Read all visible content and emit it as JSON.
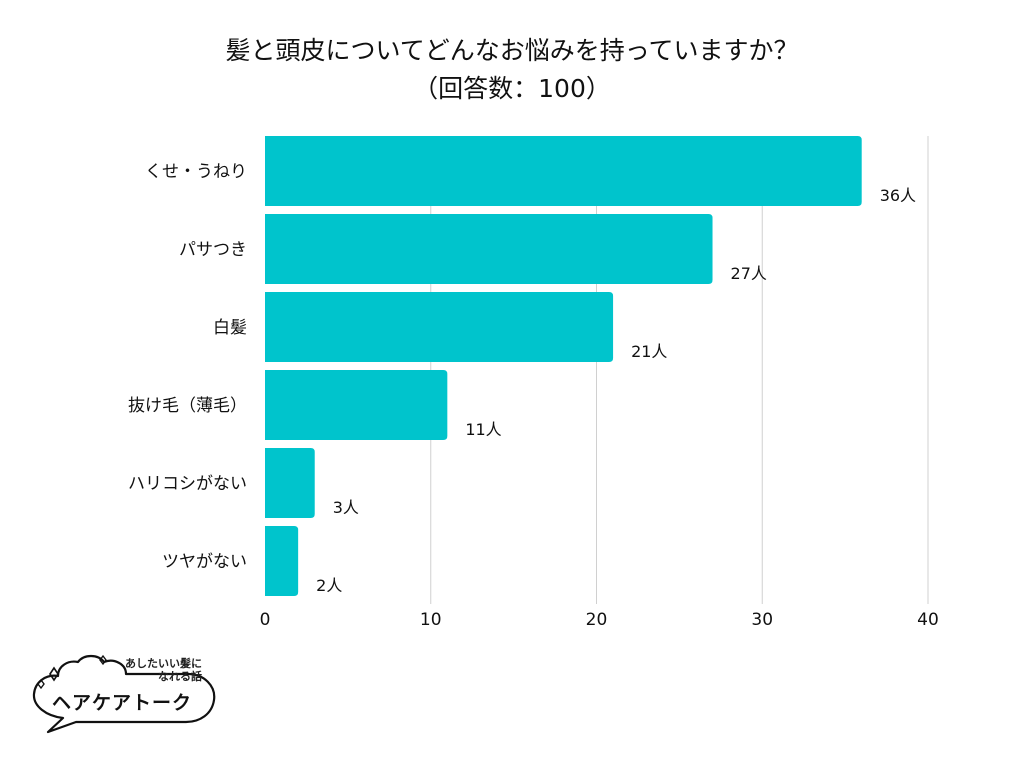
{
  "title": {
    "line1": "髪と頭皮についてどんなお悩みを持っていますか？",
    "line2": "（回答数：100）"
  },
  "chart_data": {
    "type": "bar",
    "orientation": "horizontal",
    "title": "髪と頭皮についてどんなお悩みを持っていますか？（回答数：100）",
    "categories": [
      "くせ・うねり",
      "パサつき",
      "白髪",
      "抜け毛（薄毛）",
      "ハリコシがない",
      "ツヤがない"
    ],
    "values": [
      36,
      27,
      21,
      11,
      3,
      2
    ],
    "value_labels": [
      "36人",
      "27人",
      "21人",
      "11人",
      "3人",
      "2人"
    ],
    "xlim": [
      0,
      40
    ],
    "xticks": [
      0,
      10,
      20,
      30,
      40
    ],
    "grid": true,
    "bar_color": "#00C4CC",
    "grid_color": "#D0D0D0"
  },
  "logo": {
    "tagline_line1": "あしたいい髪に",
    "tagline_line2": "なれる話",
    "name": "ヘアケアトーク"
  }
}
